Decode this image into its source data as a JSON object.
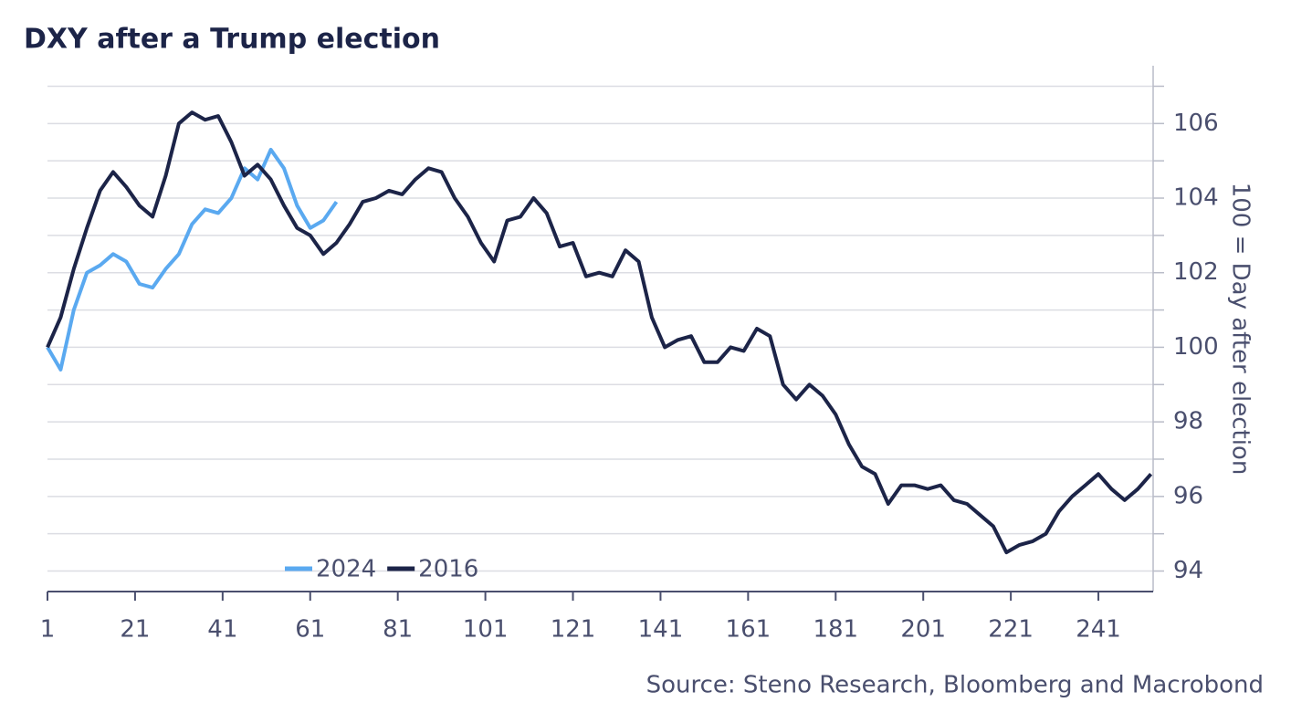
{
  "chart_data": {
    "type": "line",
    "title": "DXY after a Trump election",
    "y_axis_label": "100 = Day after election",
    "source": "Source: Steno Research, Bloomberg and Macrobond",
    "x": [
      1,
      4,
      7,
      10,
      13,
      16,
      19,
      22,
      25,
      28,
      31,
      34,
      37,
      40,
      43,
      46,
      49,
      52,
      55,
      58,
      61,
      64,
      67,
      70,
      73,
      76,
      79,
      82,
      85,
      88,
      91,
      94,
      97,
      100,
      103,
      106,
      109,
      112,
      115,
      118,
      121,
      124,
      127,
      130,
      133,
      136,
      139,
      142,
      145,
      148,
      151,
      154,
      157,
      160,
      163,
      166,
      169,
      172,
      175,
      178,
      181,
      184,
      187,
      190,
      193,
      196,
      199,
      202,
      205,
      208,
      211,
      214,
      217,
      220,
      223,
      226,
      229,
      232,
      235,
      238,
      241,
      244,
      247,
      250,
      253
    ],
    "series": [
      {
        "name": "2024",
        "color": "#5aa9f0",
        "values": [
          100,
          99.4,
          101.0,
          102.0,
          102.2,
          102.5,
          102.3,
          101.7,
          101.6,
          102.1,
          102.5,
          103.3,
          103.7,
          103.6,
          104.0,
          104.8,
          104.5,
          105.3,
          104.8,
          103.8,
          103.2,
          103.4,
          103.9,
          null,
          null,
          null,
          null,
          null,
          null,
          null,
          null,
          null,
          null,
          null,
          null,
          null,
          null,
          null,
          null,
          null,
          null,
          null,
          null,
          null,
          null,
          null,
          null,
          null,
          null,
          null,
          null,
          null,
          null,
          null,
          null,
          null,
          null,
          null,
          null,
          null,
          null,
          null,
          null,
          null,
          null,
          null,
          null,
          null,
          null,
          null,
          null,
          null,
          null,
          null,
          null,
          null,
          null,
          null,
          null,
          null,
          null,
          null,
          null,
          null,
          null
        ]
      },
      {
        "name": "2016",
        "color": "#1c2448",
        "values": [
          100,
          100.8,
          102.1,
          103.2,
          104.2,
          104.7,
          104.3,
          103.8,
          103.5,
          104.6,
          106.0,
          106.3,
          106.1,
          106.2,
          105.5,
          104.6,
          104.9,
          104.5,
          103.8,
          103.2,
          103.0,
          102.5,
          102.8,
          103.3,
          103.9,
          104.0,
          104.2,
          104.1,
          104.5,
          104.8,
          104.7,
          104.0,
          103.5,
          102.8,
          102.3,
          103.4,
          103.5,
          104.0,
          103.6,
          102.7,
          102.8,
          101.9,
          102.0,
          101.9,
          102.6,
          102.3,
          100.8,
          100.0,
          100.2,
          100.3,
          99.6,
          99.6,
          100.0,
          99.9,
          100.5,
          100.3,
          99.0,
          98.6,
          99.0,
          98.7,
          98.2,
          97.4,
          96.8,
          96.6,
          95.8,
          96.3,
          96.3,
          96.2,
          96.3,
          95.9,
          95.8,
          95.5,
          95.2,
          94.5,
          94.7,
          94.8,
          95.0,
          95.6,
          96.0,
          96.3,
          96.6,
          96.2,
          95.9,
          96.2,
          96.6
        ]
      }
    ],
    "xlim": [
      1,
      253.5
    ],
    "xticks": [
      1,
      21,
      41,
      61,
      81,
      101,
      121,
      141,
      161,
      181,
      201,
      221,
      241
    ],
    "ylim": [
      93.45,
      107.55
    ],
    "yticks": [
      94,
      96,
      98,
      100,
      102,
      104,
      106
    ],
    "minor_yticks": [
      95,
      97,
      99,
      101,
      103,
      105,
      107
    ],
    "grid": true,
    "legend": "bottom"
  }
}
